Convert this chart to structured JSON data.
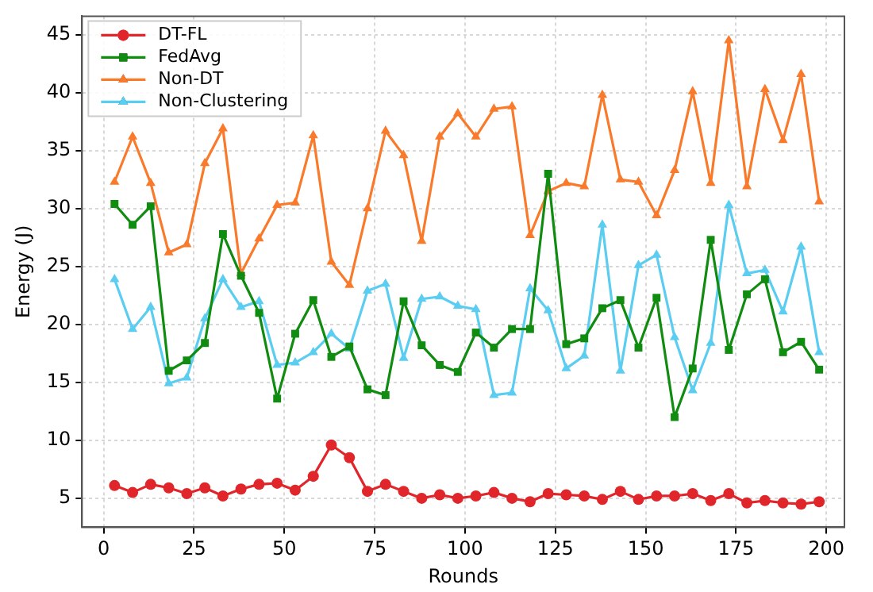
{
  "chart_data": {
    "type": "line",
    "xlabel": "Rounds",
    "ylabel": "Energy (J)",
    "x": [
      3,
      8,
      13,
      18,
      23,
      28,
      33,
      38,
      43,
      48,
      53,
      58,
      63,
      68,
      73,
      78,
      83,
      88,
      93,
      98,
      103,
      108,
      113,
      118,
      123,
      128,
      133,
      138,
      143,
      148,
      153,
      158,
      163,
      168,
      173,
      178,
      183,
      188,
      193,
      198
    ],
    "xlim": [
      -6,
      205
    ],
    "xticks": [
      0,
      25,
      50,
      75,
      100,
      125,
      150,
      175,
      200
    ],
    "ylim": [
      2.5,
      46.6
    ],
    "yticks": [
      5,
      10,
      15,
      20,
      25,
      30,
      35,
      40,
      45
    ],
    "grid": true,
    "legend": "top left",
    "line_style": "solid",
    "series": [
      {
        "name": "DT-FL",
        "color": "#e0262a",
        "marker": "circle",
        "values": [
          6.1,
          5.5,
          6.2,
          5.9,
          5.4,
          5.9,
          5.2,
          5.8,
          6.2,
          6.3,
          5.7,
          6.9,
          9.6,
          8.5,
          5.6,
          6.2,
          5.6,
          5.0,
          5.3,
          5.0,
          5.2,
          5.5,
          5.0,
          4.7,
          5.4,
          5.3,
          5.2,
          4.9,
          5.6,
          4.9,
          5.2,
          5.2,
          5.4,
          4.8,
          5.4,
          4.6,
          4.8,
          4.6,
          4.5,
          4.7
        ]
      },
      {
        "name": "FedAvg",
        "color": "#108c10",
        "marker": "square",
        "values": [
          30.4,
          28.6,
          30.2,
          16.0,
          16.9,
          18.4,
          27.8,
          24.2,
          21.0,
          13.6,
          19.2,
          22.1,
          17.2,
          18.1,
          14.4,
          13.9,
          22.0,
          18.2,
          16.5,
          15.9,
          19.3,
          18.0,
          19.6,
          19.6,
          33.0,
          18.3,
          18.8,
          21.4,
          22.1,
          18.0,
          22.3,
          12.0,
          16.2,
          27.3,
          17.8,
          22.6,
          23.9,
          17.6,
          18.5,
          16.1
        ]
      },
      {
        "name": "Non-DT",
        "color": "#f97a2a",
        "marker": "triangle",
        "values": [
          32.3,
          36.2,
          32.2,
          26.2,
          26.9,
          33.9,
          36.9,
          24.4,
          27.4,
          30.3,
          30.5,
          36.3,
          25.4,
          23.4,
          30.0,
          36.7,
          34.6,
          27.2,
          36.2,
          38.2,
          36.2,
          38.6,
          38.8,
          27.7,
          31.5,
          32.2,
          31.9,
          39.8,
          32.5,
          32.3,
          29.4,
          33.3,
          40.1,
          32.2,
          44.5,
          31.9,
          40.3,
          35.9,
          41.6,
          30.6
        ]
      },
      {
        "name": "Non-Clustering",
        "color": "#5bcdf0",
        "marker": "triangle",
        "values": [
          23.9,
          19.6,
          21.5,
          14.9,
          15.4,
          20.5,
          23.9,
          21.5,
          22.0,
          16.5,
          16.7,
          17.6,
          19.2,
          17.9,
          22.9,
          23.5,
          17.1,
          22.2,
          22.4,
          21.6,
          21.3,
          13.9,
          14.1,
          23.1,
          21.2,
          16.2,
          17.3,
          28.6,
          16.0,
          25.1,
          26.0,
          18.9,
          14.3,
          18.4,
          30.3,
          24.4,
          24.7,
          21.1,
          26.7,
          17.6
        ]
      }
    ]
  }
}
